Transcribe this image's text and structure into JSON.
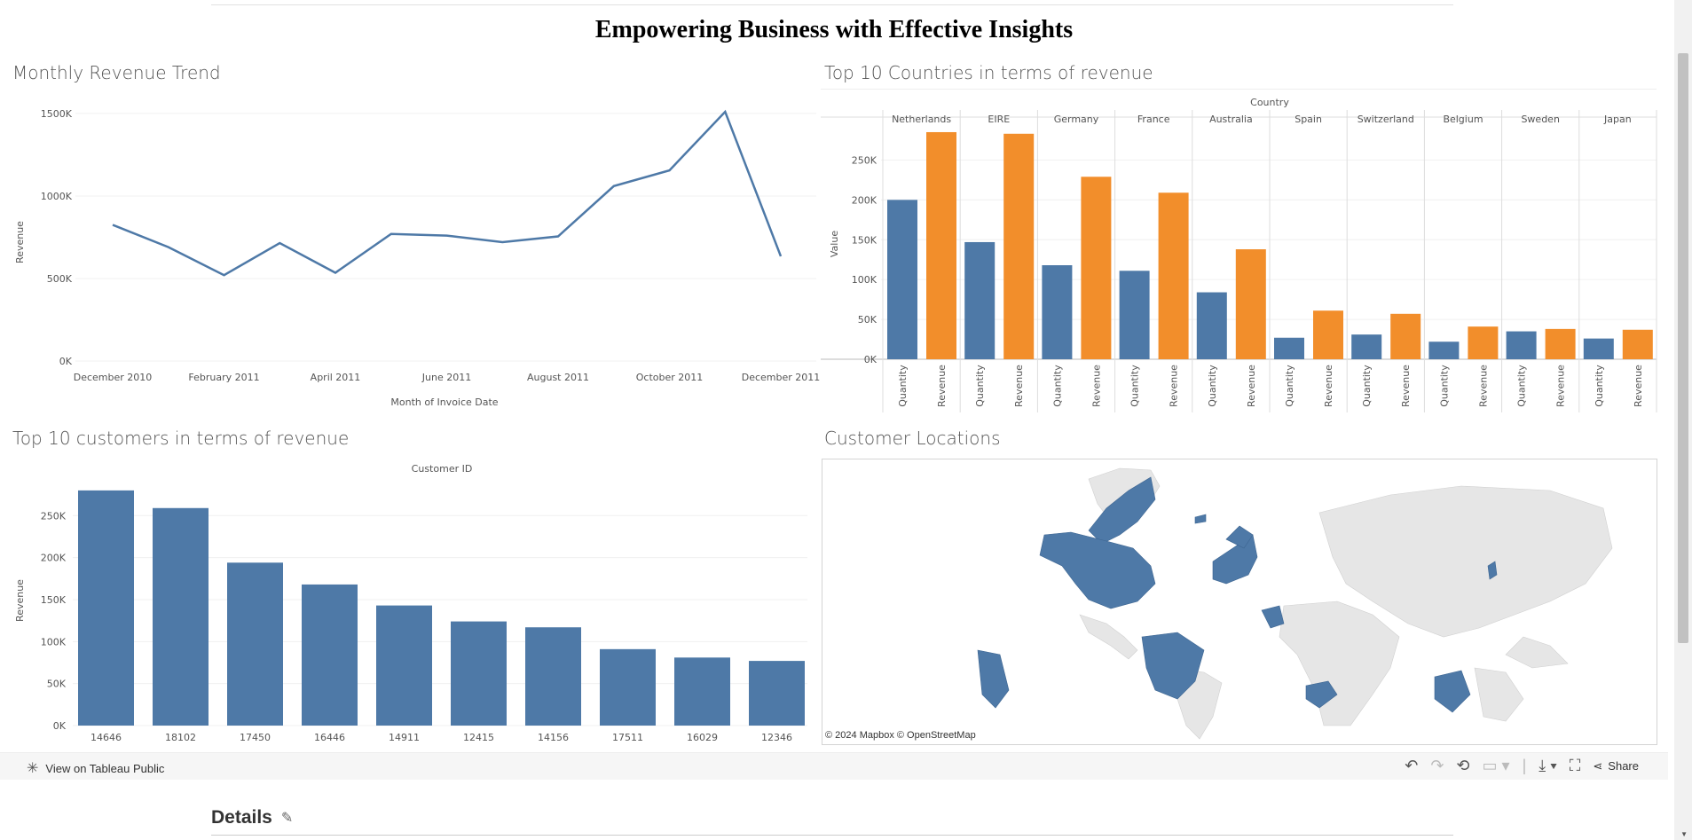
{
  "dashboard_title": "Empowering Business with Effective Insights",
  "colors": {
    "blue": "#4E79A7",
    "orange": "#F28E2B",
    "land": "#e6e6e6"
  },
  "icons": {
    "tableau": "tableau-logo-icon",
    "undo": "undo-icon",
    "redo": "redo-icon",
    "revert": "revert-icon",
    "refresh": "refresh-icon",
    "download": "download-icon",
    "fullscreen": "fullscreen-icon",
    "share": "share-icon",
    "edit": "pencil-icon"
  },
  "footer": {
    "view_on_tableau": "View on Tableau Public",
    "share_label": "Share",
    "details_label": "Details"
  },
  "map": {
    "title": "Customer Locations",
    "attribution": "© 2024 Mapbox  © OpenStreetMap"
  },
  "chart_data": [
    {
      "type": "line",
      "title": "Monthly Revenue Trend",
      "xlabel": "Month of Invoice Date",
      "ylabel": "Revenue",
      "x": [
        "December 2010",
        "January 2011",
        "February 2011",
        "March 2011",
        "April 2011",
        "May 2011",
        "June 2011",
        "July 2011",
        "August 2011",
        "September 2011",
        "October 2011",
        "November 2011",
        "December 2011"
      ],
      "x_tick_labels": [
        "December 2010",
        "February 2011",
        "April 2011",
        "June 2011",
        "August 2011",
        "October 2011",
        "December 2011"
      ],
      "values": [
        825000,
        690000,
        520000,
        715000,
        535000,
        770000,
        760000,
        720000,
        755000,
        1060000,
        1155000,
        1510000,
        635000
      ],
      "ylim": [
        0,
        1650000
      ],
      "y_ticks": [
        0,
        500000,
        1000000,
        1500000
      ],
      "y_tick_labels": [
        "0K",
        "500K",
        "1000K",
        "1500K"
      ],
      "grid": true
    },
    {
      "type": "bar",
      "title": "Top 10 Countries in terms of revenue",
      "column_header": "Country",
      "ylabel": "Value",
      "categories": [
        "Netherlands",
        "EIRE",
        "Germany",
        "France",
        "Australia",
        "Spain",
        "Switzerland",
        "Belgium",
        "Sweden",
        "Japan"
      ],
      "measure_labels": [
        "Quantity",
        "Revenue"
      ],
      "series": [
        {
          "name": "Quantity",
          "values": [
            200000,
            147000,
            118000,
            111000,
            84000,
            27000,
            31000,
            22000,
            35000,
            26000
          ]
        },
        {
          "name": "Revenue",
          "values": [
            285000,
            283000,
            229000,
            209000,
            138000,
            61000,
            57000,
            41000,
            38000,
            37000
          ]
        }
      ],
      "ylim": [
        0,
        295000
      ],
      "y_ticks": [
        0,
        50000,
        100000,
        150000,
        200000,
        250000
      ],
      "y_tick_labels": [
        "0K",
        "50K",
        "100K",
        "150K",
        "200K",
        "250K"
      ],
      "grid": true
    },
    {
      "type": "bar",
      "title": "Top 10 customers in terms of revenue",
      "column_header": "Customer ID",
      "ylabel": "Revenue",
      "categories": [
        "14646",
        "18102",
        "17450",
        "16446",
        "14911",
        "12415",
        "14156",
        "17511",
        "16029",
        "12346"
      ],
      "values": [
        280000,
        259000,
        194000,
        168000,
        143000,
        124000,
        117000,
        91000,
        81000,
        77000
      ],
      "ylim": [
        0,
        282000
      ],
      "y_ticks": [
        0,
        50000,
        100000,
        150000,
        200000,
        250000
      ],
      "y_tick_labels": [
        "0K",
        "50K",
        "100K",
        "150K",
        "200K",
        "250K"
      ],
      "grid": true
    }
  ]
}
